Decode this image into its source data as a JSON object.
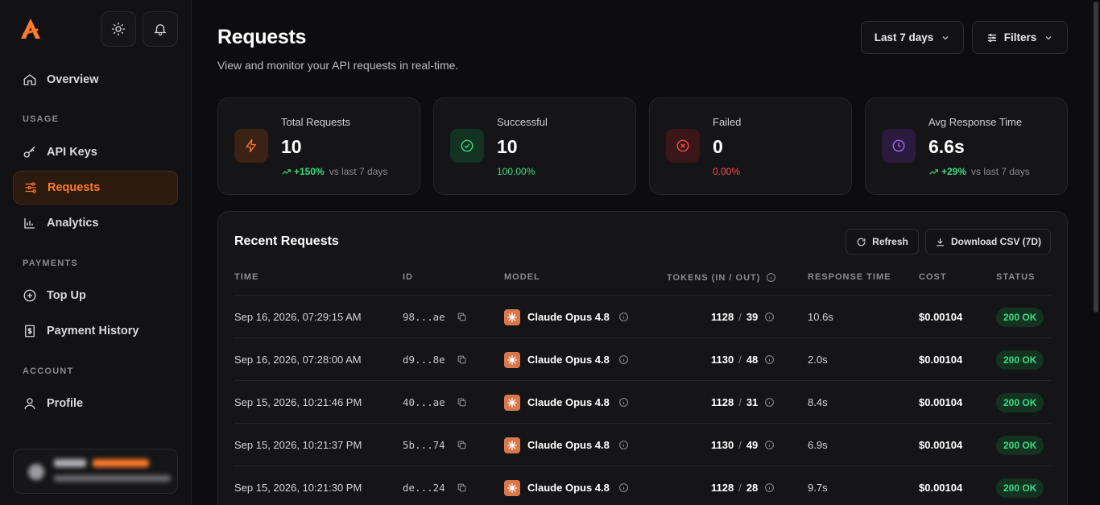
{
  "sidebar": {
    "items": [
      {
        "label": "Overview",
        "icon": "home-icon"
      },
      {
        "label": "API Keys",
        "icon": "key-icon"
      },
      {
        "label": "Requests",
        "icon": "sliders-icon"
      },
      {
        "label": "Analytics",
        "icon": "bar-chart-icon"
      },
      {
        "label": "Top Up",
        "icon": "plus-circle-icon"
      },
      {
        "label": "Payment History",
        "icon": "receipt-icon"
      },
      {
        "label": "Profile",
        "icon": "user-icon"
      }
    ],
    "sections": {
      "usage": "USAGE",
      "payments": "PAYMENTS",
      "account": "ACCOUNT"
    },
    "active": "Requests"
  },
  "header": {
    "title": "Requests",
    "subtitle": "View and monitor your API requests in real-time.",
    "range_label": "Last 7 days",
    "filters_label": "Filters"
  },
  "stats": [
    {
      "label": "Total Requests",
      "value": "10",
      "delta": "+150%",
      "note": "vs last 7 days",
      "color": "#ff7a2a"
    },
    {
      "label": "Successful",
      "value": "10",
      "delta": "100.00%",
      "note": "",
      "color": "#3ddc84"
    },
    {
      "label": "Failed",
      "value": "0",
      "delta": "0.00%",
      "note": "",
      "color": "#ff4d4d"
    },
    {
      "label": "Avg Response Time",
      "value": "6.6s",
      "delta": "+29%",
      "note": "vs last 7 days",
      "color": "#a66bff"
    }
  ],
  "recent": {
    "title": "Recent Requests",
    "refresh_label": "Refresh",
    "download_label": "Download CSV (7D)",
    "columns": [
      "TIME",
      "ID",
      "MODEL",
      "TOKENS (IN / OUT)",
      "RESPONSE TIME",
      "COST",
      "STATUS"
    ],
    "rows": [
      {
        "time": "Sep 16, 2026, 07:29:15 AM",
        "id": "98...ae",
        "model": "Claude Opus 4.8",
        "tin": "1128",
        "tout": "39",
        "resp": "10.6s",
        "cost": "$0.00104",
        "status": "200 OK"
      },
      {
        "time": "Sep 16, 2026, 07:28:00 AM",
        "id": "d9...8e",
        "model": "Claude Opus 4.8",
        "tin": "1130",
        "tout": "48",
        "resp": "2.0s",
        "cost": "$0.00104",
        "status": "200 OK"
      },
      {
        "time": "Sep 15, 2026, 10:21:46 PM",
        "id": "40...ae",
        "model": "Claude Opus 4.8",
        "tin": "1128",
        "tout": "31",
        "resp": "8.4s",
        "cost": "$0.00104",
        "status": "200 OK"
      },
      {
        "time": "Sep 15, 2026, 10:21:37 PM",
        "id": "5b...74",
        "model": "Claude Opus 4.8",
        "tin": "1130",
        "tout": "49",
        "resp": "6.9s",
        "cost": "$0.00104",
        "status": "200 OK"
      },
      {
        "time": "Sep 15, 2026, 10:21:30 PM",
        "id": "de...24",
        "model": "Claude Opus 4.8",
        "tin": "1128",
        "tout": "28",
        "resp": "9.7s",
        "cost": "$0.00104",
        "status": "200 OK"
      }
    ]
  }
}
